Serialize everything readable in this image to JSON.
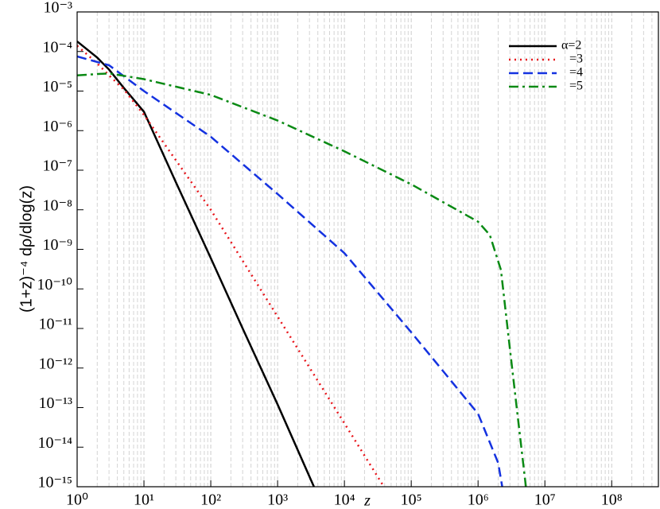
{
  "chart_data": {
    "type": "line",
    "x_label": "z",
    "y_label": "(1+z)⁻⁴ dρ/dlog(z)",
    "xscale": "log",
    "yscale": "log",
    "grid": true,
    "legend": "upper right",
    "xlim": [
      1,
      500000000
    ],
    "ylim": [
      1e-15,
      0.001
    ],
    "xticks": [
      {
        "value": 1,
        "label": "10⁰"
      },
      {
        "value": 10,
        "label": "10¹"
      },
      {
        "value": 100,
        "label": "10²"
      },
      {
        "value": 1000,
        "label": "10³"
      },
      {
        "value": 10000,
        "label": "10⁴"
      },
      {
        "value": 100000,
        "label": "10⁵"
      },
      {
        "value": 1000000,
        "label": "10⁶"
      },
      {
        "value": 10000000,
        "label": "10⁷"
      },
      {
        "value": 100000000,
        "label": "10⁸"
      }
    ],
    "yticks": [
      {
        "value": 1e-15,
        "label": "10⁻¹⁵"
      },
      {
        "value": 1e-14,
        "label": "10⁻¹⁴"
      },
      {
        "value": 1e-13,
        "label": "10⁻¹³"
      },
      {
        "value": 1e-12,
        "label": "10⁻¹²"
      },
      {
        "value": 1e-11,
        "label": "10⁻¹¹"
      },
      {
        "value": 1e-10,
        "label": "10⁻¹⁰"
      },
      {
        "value": 1e-09,
        "label": "10⁻⁹"
      },
      {
        "value": 1e-08,
        "label": "10⁻⁸"
      },
      {
        "value": 1e-07,
        "label": "10⁻⁷"
      },
      {
        "value": 1e-06,
        "label": "10⁻⁶"
      },
      {
        "value": 1e-05,
        "label": "10⁻⁵"
      },
      {
        "value": 0.0001,
        "label": "10⁻⁴"
      },
      {
        "value": 0.001,
        "label": "10⁻³"
      }
    ],
    "series": [
      {
        "name": "α=2",
        "color": "#000000",
        "dash": "solid",
        "x": [
          1,
          2,
          3,
          5,
          10,
          30,
          100,
          300,
          1000,
          3500
        ],
        "values": [
          0.00018,
          7e-05,
          3.5e-05,
          1.2e-05,
          3e-06,
          5e-08,
          6e-10,
          1e-11,
          1.2e-13,
          1e-15
        ]
      },
      {
        "name": "=3",
        "color": "#e8141a",
        "dash": "dotted",
        "x": [
          1,
          2,
          3,
          5,
          10,
          100,
          1000,
          10000,
          39000
        ],
        "values": [
          0.00014,
          5e-05,
          2.5e-05,
          1.1e-05,
          2.5e-06,
          1e-08,
          2e-11,
          4e-14,
          1e-15
        ]
      },
      {
        "name": "=4",
        "color": "#1432e0",
        "dash": "dashed",
        "x": [
          1,
          3,
          10,
          100,
          1000,
          10000,
          100000,
          1000000,
          2000000,
          2300000
        ],
        "values": [
          7.5e-05,
          4.5e-05,
          1e-05,
          7e-07,
          2.5e-08,
          8e-10,
          8e-12,
          7e-14,
          4e-15,
          1e-15
        ]
      },
      {
        "name": "=5",
        "color": "#0a8a14",
        "dash": "dashdot",
        "x": [
          1,
          3,
          10,
          100,
          1000,
          10000,
          100000,
          1000000,
          1500000,
          2200000,
          3000000,
          4000000,
          5200000
        ],
        "values": [
          2.5e-05,
          2.8e-05,
          2e-05,
          8e-06,
          1.8e-06,
          3e-07,
          4.4e-08,
          5e-09,
          2.3e-09,
          3e-10,
          3e-12,
          4.5e-14,
          1e-15
        ]
      }
    ]
  }
}
